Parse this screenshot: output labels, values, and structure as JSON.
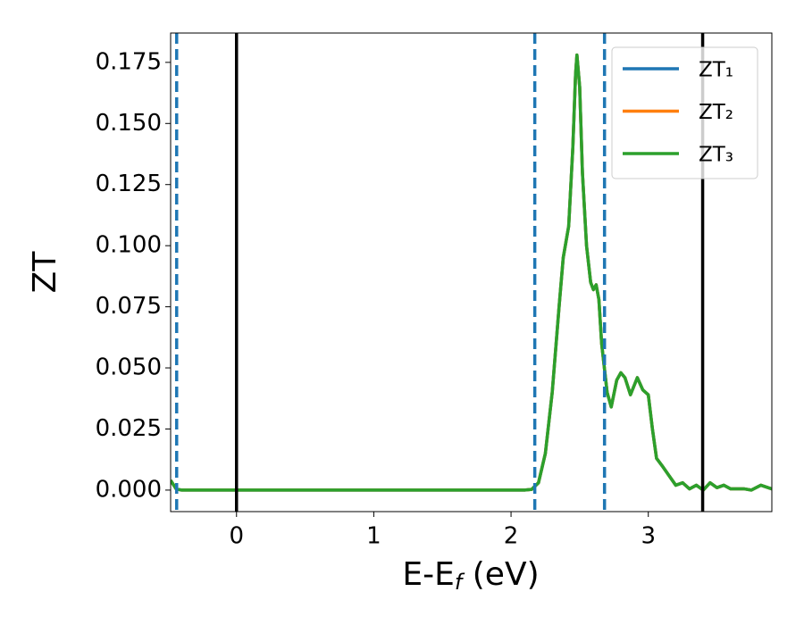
{
  "chart_data": {
    "type": "line",
    "xlabel": [
      "E-E",
      "f",
      " (eV)"
    ],
    "ylabel": "ZT",
    "x": [
      -0.48,
      -0.44,
      -0.4,
      0,
      1,
      2,
      2.1,
      2.15,
      2.2,
      2.25,
      2.3,
      2.35,
      2.38,
      2.42,
      2.45,
      2.47,
      2.48,
      2.5,
      2.52,
      2.55,
      2.58,
      2.6,
      2.62,
      2.64,
      2.66,
      2.7,
      2.73,
      2.77,
      2.8,
      2.83,
      2.87,
      2.92,
      2.96,
      3.0,
      3.03,
      3.06,
      3.1,
      3.15,
      3.2,
      3.25,
      3.3,
      3.35,
      3.4,
      3.45,
      3.5,
      3.55,
      3.6,
      3.7,
      3.75,
      3.82,
      3.9
    ],
    "series": [
      {
        "name": "ZT₁",
        "color": "#1f77b4",
        "values": [
          0.004,
          0.0005,
          0,
          0,
          0,
          0,
          0,
          0.0003,
          0.003,
          0.015,
          0.04,
          0.075,
          0.095,
          0.108,
          0.14,
          0.17,
          0.178,
          0.165,
          0.13,
          0.1,
          0.085,
          0.082,
          0.084,
          0.078,
          0.06,
          0.04,
          0.034,
          0.045,
          0.048,
          0.046,
          0.039,
          0.046,
          0.041,
          0.039,
          0.025,
          0.013,
          0.01,
          0.006,
          0.002,
          0.003,
          0.0005,
          0.002,
          0,
          0.003,
          0.001,
          0.002,
          0.0005,
          0.0005,
          0,
          0.002,
          0.0005
        ]
      },
      {
        "name": "ZT₂",
        "color": "#ff7f0e",
        "values": [
          0.004,
          0.0005,
          0,
          0,
          0,
          0,
          0,
          0.0003,
          0.003,
          0.015,
          0.04,
          0.075,
          0.095,
          0.108,
          0.14,
          0.17,
          0.178,
          0.165,
          0.13,
          0.1,
          0.085,
          0.082,
          0.084,
          0.078,
          0.06,
          0.04,
          0.034,
          0.045,
          0.048,
          0.046,
          0.039,
          0.046,
          0.041,
          0.039,
          0.025,
          0.013,
          0.01,
          0.006,
          0.002,
          0.003,
          0.0005,
          0.002,
          0,
          0.003,
          0.001,
          0.002,
          0.0005,
          0.0005,
          0,
          0.002,
          0.0005
        ]
      },
      {
        "name": "ZT₃",
        "color": "#2ca02c",
        "values": [
          0.004,
          0.0005,
          0,
          0,
          0,
          0,
          0,
          0.0003,
          0.003,
          0.015,
          0.04,
          0.075,
          0.095,
          0.108,
          0.14,
          0.17,
          0.178,
          0.165,
          0.13,
          0.1,
          0.085,
          0.082,
          0.084,
          0.078,
          0.06,
          0.04,
          0.034,
          0.045,
          0.048,
          0.046,
          0.039,
          0.046,
          0.041,
          0.039,
          0.025,
          0.013,
          0.01,
          0.006,
          0.002,
          0.003,
          0.0005,
          0.002,
          0,
          0.003,
          0.001,
          0.002,
          0.0005,
          0.0005,
          0,
          0.002,
          0.0005
        ]
      }
    ],
    "vlines": [
      {
        "x": -0.436,
        "color": "#1f77b4",
        "style": "dashed"
      },
      {
        "x": 2.173,
        "color": "#1f77b4",
        "style": "dashed"
      },
      {
        "x": 2.681,
        "color": "#1f77b4",
        "style": "dashed"
      },
      {
        "x": 0,
        "color": "#000000",
        "style": "solid"
      },
      {
        "x": 3.396,
        "color": "#000000",
        "style": "solid"
      }
    ],
    "xlim": [
      -0.48,
      3.9
    ],
    "ylim": [
      -0.0088,
      0.187
    ],
    "xticks": [
      0,
      1,
      2,
      3
    ],
    "yticks": [
      {
        "value": 0,
        "label": "0.000"
      },
      {
        "value": 0.025,
        "label": "0.025"
      },
      {
        "value": 0.05,
        "label": "0.050"
      },
      {
        "value": 0.075,
        "label": "0.075"
      },
      {
        "value": 0.1,
        "label": "0.100"
      },
      {
        "value": 0.125,
        "label": "0.125"
      },
      {
        "value": 0.15,
        "label": "0.150"
      },
      {
        "value": 0.175,
        "label": "0.175"
      }
    ],
    "legend": "upper right"
  }
}
